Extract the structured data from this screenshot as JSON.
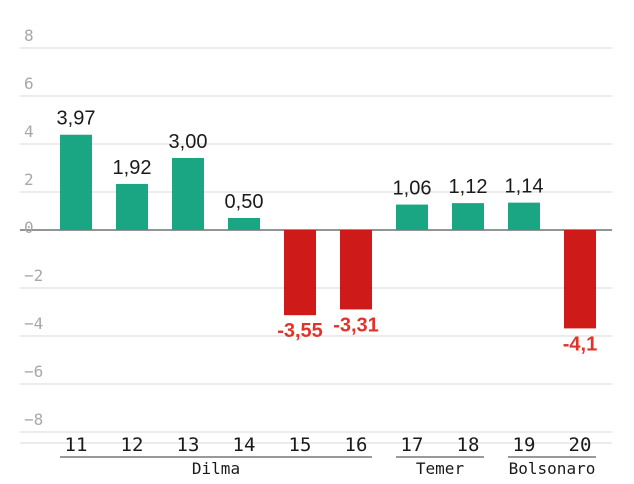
{
  "chart_data": {
    "type": "bar",
    "categories": [
      "11",
      "12",
      "13",
      "14",
      "15",
      "16",
      "17",
      "18",
      "19",
      "20"
    ],
    "values": [
      3.97,
      1.92,
      3.0,
      0.5,
      -3.55,
      -3.31,
      1.06,
      1.12,
      1.14,
      -4.1
    ],
    "data_labels": [
      "3,97",
      "1,92",
      "3,00",
      "0,50",
      "-3,55",
      "-3,31",
      "1,06",
      "1,12",
      "1,14",
      "-4,1"
    ],
    "ylim": [
      -8.5,
      8.5
    ],
    "yticks": [
      8,
      6,
      4,
      2,
      0,
      -2,
      -4,
      -6,
      -8
    ],
    "ytick_labels": [
      "8",
      "6",
      "4",
      "2",
      "0",
      "−2",
      "−4",
      "−6",
      "−8"
    ],
    "grid": true,
    "groups": [
      {
        "label": "Dilma",
        "from": 0,
        "to": 5
      },
      {
        "label": "Temer",
        "from": 6,
        "to": 7
      },
      {
        "label": "Bolsonaro",
        "from": 8,
        "to": 9
      }
    ],
    "colors": {
      "positive": "#1aa683",
      "negative": "#cf1a1a",
      "negative_label": "#e0342b",
      "grid": "#d9d9d9",
      "axis_zero": "#555555"
    }
  }
}
